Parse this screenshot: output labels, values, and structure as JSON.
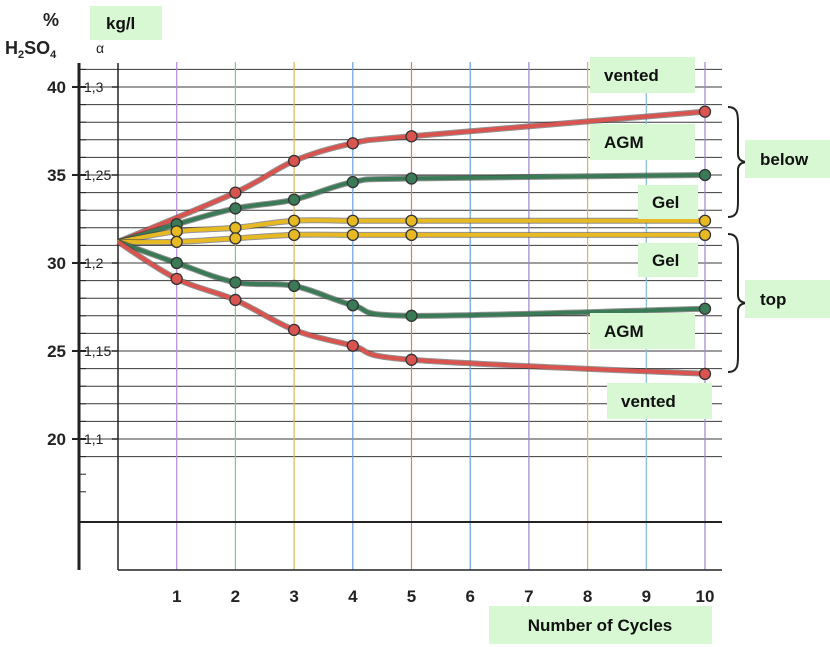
{
  "chart_data": {
    "type": "line",
    "xlabel": "Number of Cycles",
    "x_ticks": [
      "1",
      "2",
      "3",
      "4",
      "5",
      "6",
      "7",
      "8",
      "9",
      "10"
    ],
    "y_axis_left": {
      "unit_lines": [
        "%",
        "H2SO4"
      ],
      "ticks": [
        "40",
        "35",
        "30",
        "25",
        "20"
      ],
      "range": [
        15,
        42
      ]
    },
    "y_axis_right": {
      "unit": "kg/l",
      "symbol": "α",
      "ticks": [
        "1,3",
        "1,25",
        "1,2",
        "1,15",
        "1,1"
      ]
    },
    "bracket_labels": [
      "below",
      "top"
    ],
    "start_point": {
      "x": 0,
      "y": 31.2
    },
    "series": [
      {
        "name": "vented",
        "group": "below",
        "color": "#d9534f",
        "x": [
          2,
          3,
          4,
          5,
          10
        ],
        "y": [
          34.0,
          35.8,
          36.8,
          37.2,
          38.6
        ]
      },
      {
        "name": "AGM",
        "group": "below",
        "color": "#3b7a56",
        "x": [
          1,
          2,
          3,
          4,
          5,
          10
        ],
        "y": [
          32.2,
          33.1,
          33.6,
          34.6,
          34.8,
          35.0
        ]
      },
      {
        "name": "Gel",
        "group": "below",
        "color": "#e7b923",
        "x": [
          1,
          2,
          3,
          4,
          5,
          10
        ],
        "y": [
          31.8,
          32.0,
          32.4,
          32.4,
          32.4,
          32.4
        ]
      },
      {
        "name": "Gel",
        "group": "top",
        "color": "#e7b923",
        "x": [
          1,
          2,
          3,
          4,
          5,
          10
        ],
        "y": [
          31.2,
          31.4,
          31.6,
          31.6,
          31.6,
          31.6
        ]
      },
      {
        "name": "AGM",
        "group": "top",
        "color": "#3b7a56",
        "x": [
          1,
          2,
          3,
          4,
          5,
          10
        ],
        "y": [
          30.0,
          28.9,
          28.7,
          27.6,
          27.0,
          27.4
        ]
      },
      {
        "name": "vented",
        "group": "top",
        "color": "#d9534f",
        "x": [
          1,
          2,
          3,
          4,
          5,
          10
        ],
        "y": [
          29.1,
          27.9,
          26.2,
          25.3,
          24.5,
          23.7
        ]
      }
    ],
    "grid": true
  }
}
